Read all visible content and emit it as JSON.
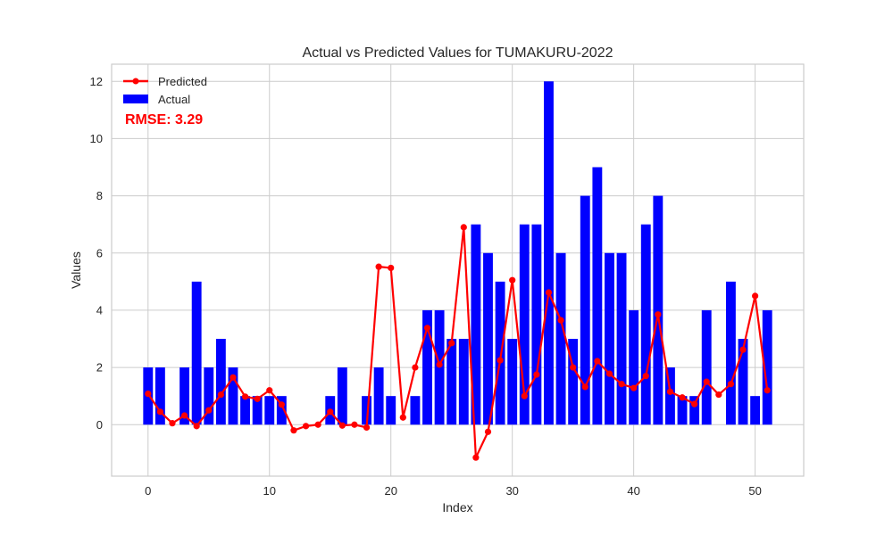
{
  "chart_data": {
    "type": "bar",
    "title": "Actual vs Predicted Values for TUMAKURU-2022",
    "xlabel": "Index",
    "ylabel": "Values",
    "xlim": [
      -3,
      54
    ],
    "ylim": [
      -1.8,
      12.6
    ],
    "x_ticks": [
      0,
      10,
      20,
      30,
      40,
      50
    ],
    "y_ticks": [
      0,
      2,
      4,
      6,
      8,
      10,
      12
    ],
    "grid": true,
    "legend_position": "upper-left",
    "annotation": {
      "text": "RMSE: 3.29",
      "color": "#ff0000"
    },
    "x": [
      0,
      1,
      2,
      3,
      4,
      5,
      6,
      7,
      8,
      9,
      10,
      11,
      12,
      13,
      14,
      15,
      16,
      17,
      18,
      19,
      20,
      21,
      22,
      23,
      24,
      25,
      26,
      27,
      28,
      29,
      30,
      31,
      32,
      33,
      34,
      35,
      36,
      37,
      38,
      39,
      40,
      41,
      42,
      43,
      44,
      45,
      46,
      47,
      48,
      49,
      50,
      51
    ],
    "series": [
      {
        "name": "Actual",
        "kind": "bar",
        "color": "#0000ff",
        "values": [
          2,
          2,
          0,
          2,
          5,
          2,
          3,
          2,
          1,
          1,
          1,
          1,
          0,
          0,
          0,
          1,
          2,
          0,
          1,
          2,
          1,
          0,
          1,
          4,
          4,
          3,
          3,
          7,
          6,
          5,
          3,
          7,
          7,
          12,
          6,
          3,
          8,
          9,
          6,
          6,
          4,
          7,
          8,
          2,
          1,
          1,
          4,
          0,
          5,
          3,
          1,
          4
        ]
      },
      {
        "name": "Predicted",
        "kind": "line",
        "color": "#ff0000",
        "values": [
          1.08,
          0.45,
          0.05,
          0.32,
          -0.05,
          0.5,
          1.05,
          1.65,
          0.98,
          0.9,
          1.2,
          0.7,
          -0.2,
          -0.05,
          0.0,
          0.45,
          -0.03,
          0.0,
          -0.1,
          5.52,
          5.48,
          0.25,
          2.0,
          3.38,
          2.1,
          2.85,
          6.9,
          -1.15,
          -0.25,
          2.25,
          5.05,
          1.0,
          1.75,
          4.62,
          3.65,
          2.0,
          1.32,
          2.22,
          1.78,
          1.42,
          1.28,
          1.7,
          3.85,
          1.15,
          0.95,
          0.72,
          1.5,
          1.05,
          1.42,
          2.62,
          4.5,
          1.2
        ]
      }
    ]
  }
}
